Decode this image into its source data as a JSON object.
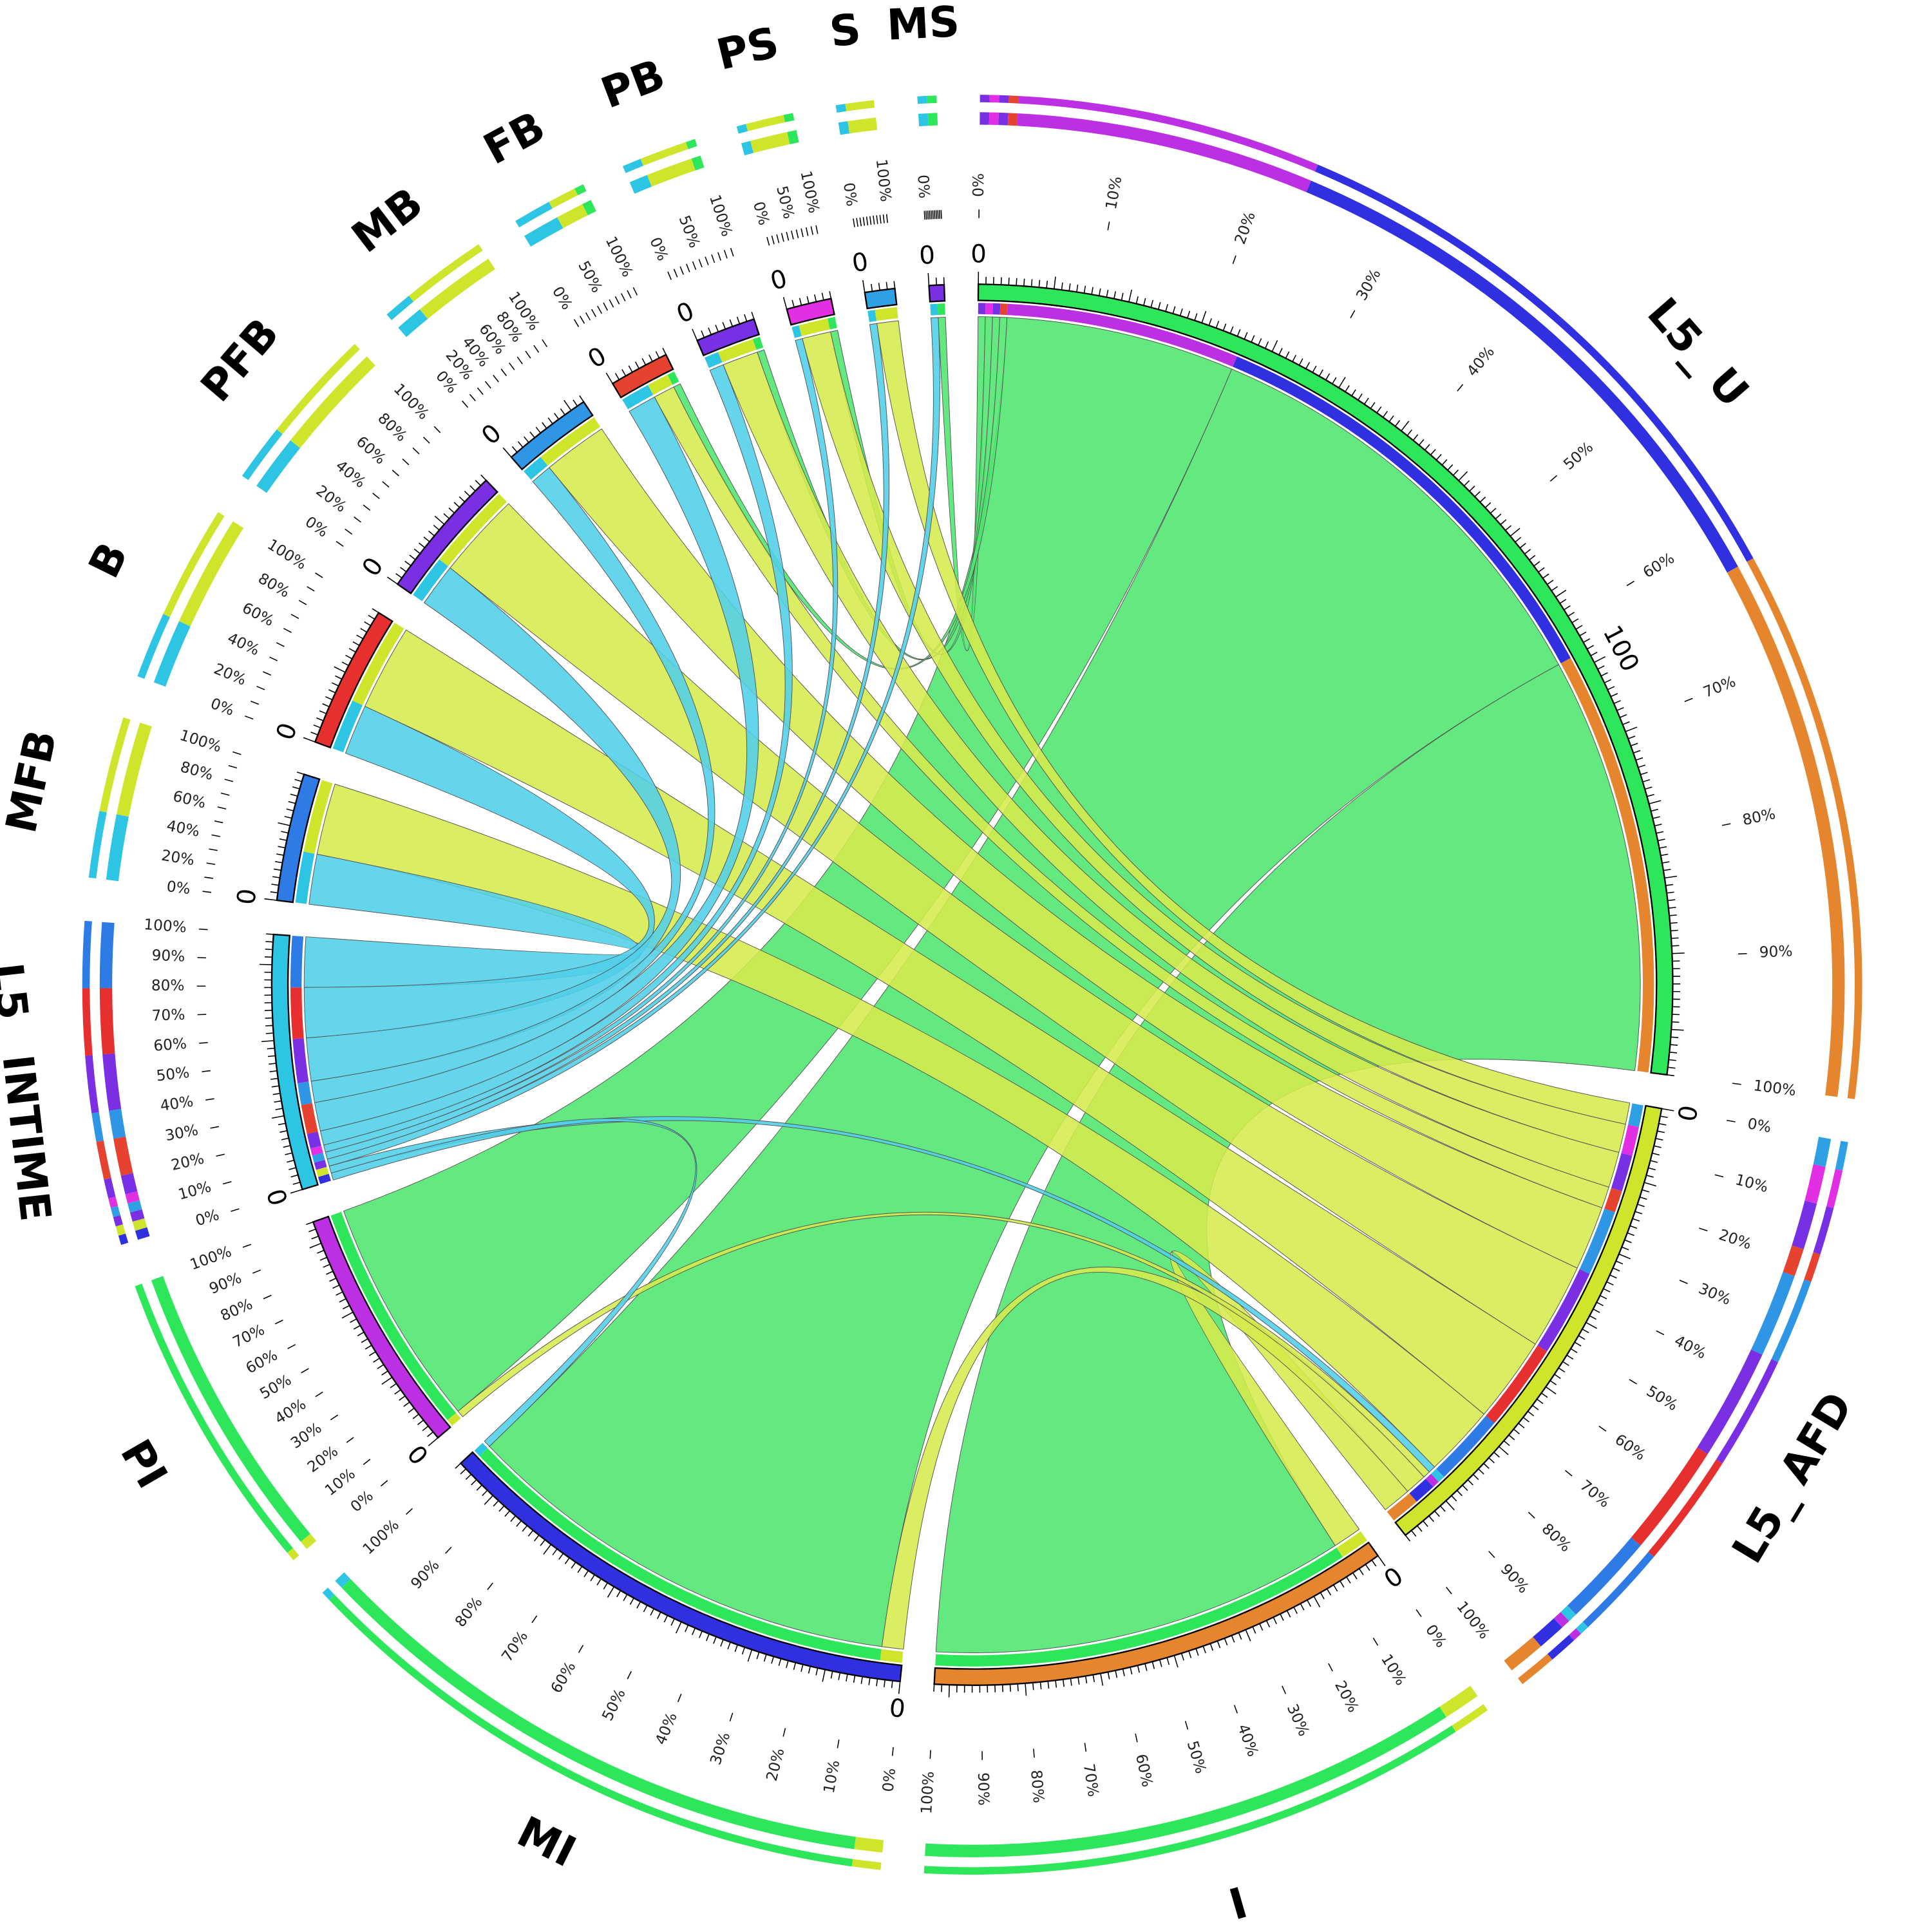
{
  "chart_data": {
    "type": "chord",
    "title": "",
    "percent_ticks": [
      "0%",
      "10%",
      "20%",
      "30%",
      "40%",
      "50%",
      "60%",
      "70%",
      "80%",
      "90%",
      "100%"
    ],
    "groups": [
      {
        "name": "L5_U",
        "color": "#2ee65a",
        "chord_color": "#4ee66f",
        "count_labels": [
          "0",
          "100"
        ],
        "count_values": [
          0,
          100
        ]
      },
      {
        "name": "L5_AFD",
        "color": "#cfe52b",
        "chord_color": "#d6ea4c",
        "count_labels": [
          "0"
        ],
        "count_values": [
          0
        ]
      },
      {
        "name": "I",
        "color": "#e5862f",
        "chord_color": "#e89a52",
        "count_labels": [
          "0"
        ],
        "count_values": [
          0
        ]
      },
      {
        "name": "MI",
        "color": "#3030e0",
        "chord_color": "#5a5ae6",
        "count_labels": [
          "0"
        ],
        "count_values": [
          0
        ]
      },
      {
        "name": "PI",
        "color": "#bd2fe3",
        "chord_color": "#c955e8",
        "count_labels": [
          "0"
        ],
        "count_values": [
          0
        ]
      },
      {
        "name": "L5_INTIME",
        "color": "#2ec4e3",
        "chord_color": "#50cfe9",
        "count_labels": [
          "0"
        ],
        "count_values": [
          0
        ]
      },
      {
        "name": "MFB",
        "color": "#2f7be5",
        "chord_color": "#5592ea",
        "count_labels": [
          "0"
        ],
        "count_values": [
          0
        ]
      },
      {
        "name": "B",
        "color": "#e5302f",
        "chord_color": "#ea5453",
        "count_labels": [
          "0"
        ],
        "count_values": [
          0
        ]
      },
      {
        "name": "PFB",
        "color": "#7b2fe3",
        "chord_color": "#9052e8",
        "count_labels": [
          "0"
        ],
        "count_values": [
          0
        ]
      },
      {
        "name": "MB",
        "color": "#2e96e5",
        "chord_color": "#52a8ea",
        "count_labels": [
          "0"
        ],
        "count_values": [
          0
        ]
      },
      {
        "name": "FB",
        "color": "#e5432f",
        "chord_color": "#ea6452",
        "count_labels": [
          "0"
        ],
        "count_values": [
          0
        ]
      },
      {
        "name": "PB",
        "color": "#7730e3",
        "chord_color": "#8d52e8",
        "count_labels": [
          "0"
        ],
        "count_values": [
          0
        ]
      },
      {
        "name": "PS",
        "color": "#e32fe3",
        "chord_color": "#e852e8",
        "count_labels": [
          "0"
        ],
        "count_values": [
          0
        ]
      },
      {
        "name": "S",
        "color": "#2ea0e3",
        "chord_color": "#52b0e8",
        "count_labels": [
          "0"
        ],
        "count_values": [
          0
        ]
      },
      {
        "name": "MS",
        "color": "#7b2fe3",
        "chord_color": "#9052e8",
        "count_labels": [
          "0"
        ],
        "count_values": [
          0
        ]
      }
    ],
    "links": [
      {
        "source": "L5_U",
        "target": "MI",
        "value": 62
      },
      {
        "source": "L5_U",
        "target": "I",
        "value": 58
      },
      {
        "source": "L5_U",
        "target": "PI",
        "value": 32
      },
      {
        "source": "L5_U",
        "target": "MS",
        "value": 1
      },
      {
        "source": "L5_U",
        "target": "PS",
        "value": 1
      },
      {
        "source": "L5_U",
        "target": "PB",
        "value": 1
      },
      {
        "source": "L5_U",
        "target": "FB",
        "value": 1
      },
      {
        "source": "L5_AFD",
        "target": "MFB",
        "value": 10
      },
      {
        "source": "L5_AFD",
        "target": "B",
        "value": 12
      },
      {
        "source": "L5_AFD",
        "target": "PFB",
        "value": 12
      },
      {
        "source": "L5_AFD",
        "target": "MB",
        "value": 9
      },
      {
        "source": "L5_AFD",
        "target": "FB",
        "value": 3
      },
      {
        "source": "L5_AFD",
        "target": "PB",
        "value": 5
      },
      {
        "source": "L5_AFD",
        "target": "PS",
        "value": 4
      },
      {
        "source": "L5_AFD",
        "target": "S",
        "value": 3
      },
      {
        "source": "L5_AFD",
        "target": "I",
        "value": 4
      },
      {
        "source": "L5_AFD",
        "target": "MI",
        "value": 3
      },
      {
        "source": "L5_AFD",
        "target": "PI",
        "value": 1
      },
      {
        "source": "L5_INTIME",
        "target": "MFB",
        "value": 7
      },
      {
        "source": "L5_INTIME",
        "target": "B",
        "value": 7
      },
      {
        "source": "L5_INTIME",
        "target": "PFB",
        "value": 6
      },
      {
        "source": "L5_INTIME",
        "target": "MB",
        "value": 3
      },
      {
        "source": "L5_INTIME",
        "target": "FB",
        "value": 4
      },
      {
        "source": "L5_INTIME",
        "target": "PB",
        "value": 2
      },
      {
        "source": "L5_INTIME",
        "target": "PS",
        "value": 1
      },
      {
        "source": "L5_INTIME",
        "target": "S",
        "value": 1
      },
      {
        "source": "L5_INTIME",
        "target": "MS",
        "value": 1
      },
      {
        "source": "L5_INTIME",
        "target": "L5_AFD",
        "value": 1
      },
      {
        "source": "L5_INTIME",
        "target": "MI",
        "value": 1
      }
    ]
  }
}
